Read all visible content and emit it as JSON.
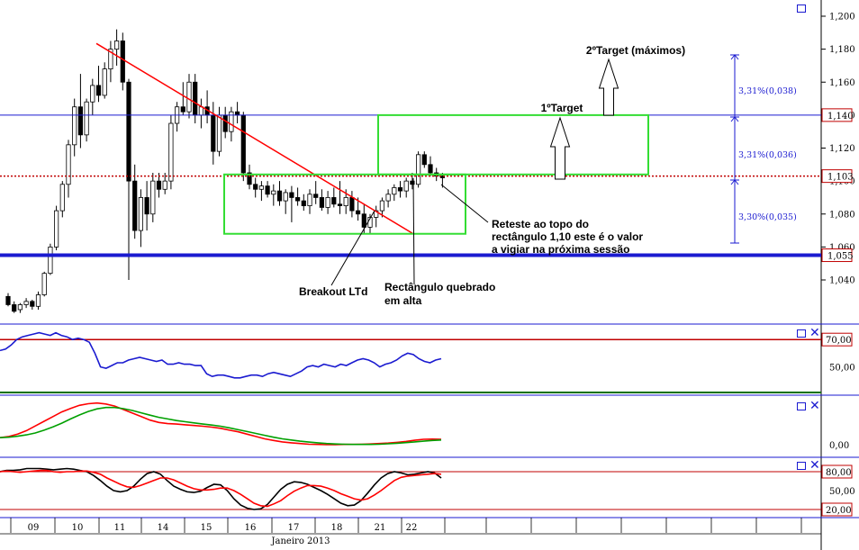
{
  "chart_data": [
    {
      "type": "candlestick",
      "yticks": [
        1.04,
        1.06,
        1.08,
        1.1,
        1.12,
        1.14,
        1.16,
        1.18,
        1.2
      ],
      "ytick_labels": [
        "1,040",
        "1,060",
        "1,080",
        "1,100",
        "1,120",
        "1,140",
        "1,160",
        "1,180",
        "1,200"
      ],
      "ylim": [
        1.025,
        1.21
      ],
      "xlabel": "Janeiro 2013",
      "day_labels": [
        "09",
        "10",
        "11",
        "14",
        "15",
        "16",
        "17",
        "18",
        "21",
        "22"
      ],
      "ohlc": [
        [
          1.03,
          1.032,
          1.024,
          1.025
        ],
        [
          1.025,
          1.027,
          1.02,
          1.021
        ],
        [
          1.022,
          1.026,
          1.02,
          1.025
        ],
        [
          1.025,
          1.029,
          1.023,
          1.027
        ],
        [
          1.027,
          1.028,
          1.022,
          1.024
        ],
        [
          1.024,
          1.033,
          1.022,
          1.031
        ],
        [
          1.031,
          1.045,
          1.03,
          1.044
        ],
        [
          1.044,
          1.062,
          1.043,
          1.06
        ],
        [
          1.06,
          1.085,
          1.058,
          1.082
        ],
        [
          1.082,
          1.1,
          1.078,
          1.098
        ],
        [
          1.098,
          1.125,
          1.09,
          1.122
        ],
        [
          1.122,
          1.15,
          1.115,
          1.145
        ],
        [
          1.145,
          1.165,
          1.12,
          1.128
        ],
        [
          1.128,
          1.15,
          1.124,
          1.148
        ],
        [
          1.148,
          1.162,
          1.14,
          1.158
        ],
        [
          1.158,
          1.17,
          1.148,
          1.152
        ],
        [
          1.152,
          1.172,
          1.15,
          1.168
        ],
        [
          1.168,
          1.185,
          1.16,
          1.18
        ],
        [
          1.18,
          1.192,
          1.17,
          1.185
        ],
        [
          1.185,
          1.19,
          1.155,
          1.16
        ],
        [
          1.16,
          1.162,
          1.04,
          1.1
        ],
        [
          1.1,
          1.11,
          1.065,
          1.07
        ],
        [
          1.07,
          1.095,
          1.06,
          1.09
        ],
        [
          1.09,
          1.1,
          1.07,
          1.08
        ],
        [
          1.08,
          1.105,
          1.075,
          1.1
        ],
        [
          1.1,
          1.105,
          1.09,
          1.095
        ],
        [
          1.095,
          1.105,
          1.092,
          1.1
        ],
        [
          1.1,
          1.14,
          1.095,
          1.135
        ],
        [
          1.135,
          1.148,
          1.13,
          1.145
        ],
        [
          1.145,
          1.16,
          1.14,
          1.142
        ],
        [
          1.142,
          1.165,
          1.138,
          1.16
        ],
        [
          1.16,
          1.165,
          1.135,
          1.14
        ],
        [
          1.14,
          1.15,
          1.132,
          1.145
        ],
        [
          1.145,
          1.155,
          1.135,
          1.14
        ],
        [
          1.14,
          1.148,
          1.11,
          1.118
        ],
        [
          1.118,
          1.145,
          1.115,
          1.14
        ],
        [
          1.14,
          1.145,
          1.126,
          1.13
        ],
        [
          1.13,
          1.145,
          1.124,
          1.142
        ],
        [
          1.142,
          1.148,
          1.135,
          1.14
        ],
        [
          1.14,
          1.142,
          1.1,
          1.105
        ],
        [
          1.105,
          1.11,
          1.095,
          1.098
        ],
        [
          1.098,
          1.102,
          1.09,
          1.095
        ],
        [
          1.095,
          1.1,
          1.088,
          1.097
        ],
        [
          1.097,
          1.1,
          1.09,
          1.092
        ],
        [
          1.092,
          1.098,
          1.085,
          1.094
        ],
        [
          1.094,
          1.1,
          1.085,
          1.088
        ],
        [
          1.088,
          1.095,
          1.08,
          1.093
        ],
        [
          1.093,
          1.097,
          1.075,
          1.09
        ],
        [
          1.09,
          1.096,
          1.085,
          1.088
        ],
        [
          1.088,
          1.092,
          1.082,
          1.085
        ],
        [
          1.085,
          1.095,
          1.08,
          1.092
        ],
        [
          1.092,
          1.1,
          1.086,
          1.09
        ],
        [
          1.09,
          1.095,
          1.082,
          1.084
        ],
        [
          1.084,
          1.094,
          1.08,
          1.09
        ],
        [
          1.09,
          1.096,
          1.084,
          1.086
        ],
        [
          1.086,
          1.1,
          1.08,
          1.085
        ],
        [
          1.085,
          1.095,
          1.08,
          1.09
        ],
        [
          1.09,
          1.094,
          1.078,
          1.082
        ],
        [
          1.082,
          1.09,
          1.076,
          1.08
        ],
        [
          1.08,
          1.086,
          1.068,
          1.072
        ],
        [
          1.072,
          1.08,
          1.068,
          1.078
        ],
        [
          1.078,
          1.085,
          1.072,
          1.082
        ],
        [
          1.082,
          1.09,
          1.078,
          1.088
        ],
        [
          1.088,
          1.095,
          1.084,
          1.092
        ],
        [
          1.092,
          1.098,
          1.088,
          1.096
        ],
        [
          1.096,
          1.1,
          1.09,
          1.094
        ],
        [
          1.094,
          1.102,
          1.09,
          1.1
        ],
        [
          1.1,
          1.105,
          1.095,
          1.098
        ],
        [
          1.098,
          1.118,
          1.096,
          1.116
        ],
        [
          1.116,
          1.118,
          1.108,
          1.11
        ],
        [
          1.11,
          1.115,
          1.103,
          1.105
        ],
        [
          1.105,
          1.108,
          1.1,
          1.103
        ],
        [
          1.103,
          1.105,
          1.096,
          1.102
        ]
      ],
      "levels": [
        {
          "label": "1,140",
          "value": 1.14,
          "color": "#1a1ad0",
          "style": "thin"
        },
        {
          "label": "1,103",
          "value": 1.103,
          "color": "#c00000",
          "style": "dotted"
        },
        {
          "label": "1,055",
          "value": 1.055,
          "color": "#1a1ad0",
          "style": "thick"
        }
      ],
      "trendline": {
        "start": [
          0,
          1.19
        ],
        "end": [
          60,
          1.068
        ],
        "color": "#ff0000"
      },
      "rectangles": [
        {
          "x": [
            37,
            66
          ],
          "y": [
            1.068,
            1.104
          ],
          "color": "#33dd33"
        },
        {
          "x": [
            67,
            88
          ],
          "y": [
            1.104,
            1.14
          ],
          "color": "#33dd33"
        }
      ],
      "targets": [
        "1ºTarget",
        "2ºTarget (máximos)"
      ],
      "measurements": [
        "3,31%(0,038)",
        "3,31%(0,036)",
        "3,30%(0,035)"
      ],
      "annotations": [
        "Breakout LTd",
        "Rectângulo quebrado",
        "em alta",
        "Reteste ao topo do",
        "rectângulo 1,10  este é o valor",
        "a vigiar na próxima sessão"
      ]
    },
    {
      "type": "line",
      "ylim": [
        30,
        80
      ],
      "yticks_labels": [
        "70,00",
        "50,00"
      ],
      "ref_level": 70,
      "series": [
        {
          "color": "#1a1ad0",
          "values": [
            62,
            63,
            66,
            70,
            72,
            73,
            74,
            75,
            74,
            73,
            75,
            73,
            72,
            70,
            71,
            70,
            68,
            60,
            50,
            49,
            51,
            53,
            53,
            55,
            56,
            57,
            56,
            55,
            54,
            55,
            52,
            52,
            53,
            52,
            52,
            51,
            51,
            45,
            43,
            44,
            44,
            43,
            42,
            42,
            43,
            44,
            44,
            43,
            45,
            46,
            45,
            44,
            43,
            45,
            47,
            50,
            51,
            50,
            52,
            51,
            50,
            52,
            51,
            53,
            55,
            56,
            55,
            53,
            50,
            52,
            53,
            55,
            58,
            60,
            59,
            56,
            54,
            53,
            55,
            56
          ]
        }
      ]
    },
    {
      "type": "line",
      "ylim": [
        -3,
        22
      ],
      "yticks_labels": [
        "0,00"
      ],
      "series": [
        {
          "color": "#ff0000",
          "values": [
            3,
            3.5,
            4.5,
            6,
            8,
            10,
            12,
            14,
            15.5,
            16.8,
            17.5,
            17.8,
            17.4,
            16.5,
            15,
            13.5,
            12,
            10.5,
            9.5,
            9,
            8.8,
            8.5,
            8.2,
            7.9,
            7.5,
            7,
            6.2,
            5.5,
            4.5,
            3.5,
            2.5,
            1.8,
            1.2,
            0.8,
            0.5,
            0.2,
            0.1,
            0,
            0,
            0.1,
            0.1,
            0.2,
            0.3,
            0.5,
            0.7,
            1,
            1.4,
            1.9,
            2.3,
            2.4,
            2.3
          ]
        },
        {
          "color": "#00a000",
          "values": [
            3,
            3.2,
            3.6,
            4.2,
            5,
            6.2,
            7.6,
            9.2,
            11,
            12.7,
            14.2,
            15.3,
            15.9,
            15.9,
            15.4,
            14.6,
            13.6,
            12.6,
            11.7,
            11,
            10.3,
            9.8,
            9.3,
            8.8,
            8.4,
            7.9,
            7.2,
            6.4,
            5.6,
            4.8,
            4,
            3.2,
            2.5,
            2,
            1.5,
            1.1,
            0.8,
            0.5,
            0.3,
            0.2,
            0.1,
            0.1,
            0.1,
            0.2,
            0.4,
            0.6,
            0.9,
            1.2,
            1.5,
            1.8,
            2
          ]
        }
      ]
    },
    {
      "type": "line",
      "ylim": [
        15,
        90
      ],
      "yticks_labels": [
        "80,00",
        "50,00",
        "20,00"
      ],
      "ref_levels": [
        80,
        20
      ],
      "series": [
        {
          "color": "#000000",
          "values": [
            80,
            82,
            82,
            83,
            85,
            85,
            85,
            84,
            83,
            84,
            85,
            84,
            82,
            80,
            74,
            66,
            57,
            50,
            48,
            50,
            57,
            68,
            77,
            80,
            76,
            66,
            57,
            52,
            48,
            47,
            49,
            55,
            60,
            59,
            50,
            37,
            27,
            22,
            20,
            21,
            28,
            40,
            52,
            60,
            64,
            63,
            60,
            55,
            50,
            44,
            37,
            30,
            26,
            27,
            34,
            46,
            59,
            70,
            77,
            80,
            78,
            75,
            76,
            78,
            80,
            78,
            70
          ]
        },
        {
          "color": "#ff0000",
          "values": [
            80,
            81,
            80,
            79,
            80,
            81,
            82,
            82,
            80,
            79,
            80,
            80,
            81,
            81,
            79,
            76,
            70,
            65,
            60,
            56,
            55,
            58,
            62,
            66,
            70,
            70,
            67,
            62,
            57,
            53,
            51,
            51,
            52,
            54,
            54,
            50,
            44,
            37,
            30,
            26,
            25,
            29,
            34,
            42,
            49,
            54,
            58,
            58,
            57,
            54,
            50,
            45,
            41,
            37,
            35,
            37,
            43,
            50,
            58,
            66,
            71,
            73,
            74,
            75,
            76,
            77,
            76
          ]
        }
      ]
    }
  ]
}
